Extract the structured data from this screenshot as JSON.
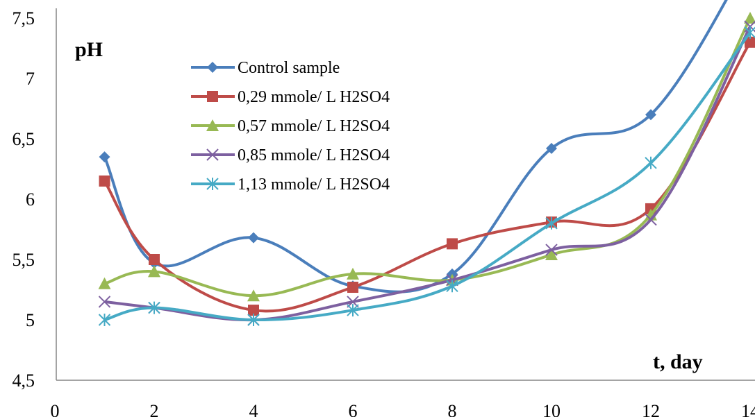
{
  "chart_data": {
    "type": "line",
    "ylabel": "pH",
    "xlabel": "t, day",
    "xlim": [
      0,
      14
    ],
    "ylim": [
      4.5,
      7.5
    ],
    "x_ticks": [
      "0",
      "2",
      "4",
      "6",
      "8",
      "10",
      "12",
      "14"
    ],
    "y_ticks": [
      "4,5",
      "5",
      "5,5",
      "6",
      "6,5",
      "7",
      "7,5"
    ],
    "grid": false,
    "legend_position": "top-left",
    "series": [
      {
        "name": "Control sample",
        "color": "#4a7ebb",
        "marker": "diamond",
        "x": [
          1,
          2,
          4,
          6,
          8,
          10,
          12,
          14
        ],
        "y": [
          6.35,
          5.47,
          5.68,
          5.28,
          5.38,
          6.42,
          6.7,
          8.0
        ]
      },
      {
        "name": "0,29 mmole/ L H2SO4",
        "color": "#be4b48",
        "marker": "square",
        "x": [
          1,
          2,
          4,
          6,
          8,
          10,
          12,
          14
        ],
        "y": [
          6.15,
          5.5,
          5.08,
          5.27,
          5.63,
          5.81,
          5.92,
          7.3
        ]
      },
      {
        "name": "0,57 mmole/ L H2SO4",
        "color": "#98b954",
        "marker": "triangle",
        "x": [
          1,
          2,
          4,
          6,
          8,
          10,
          12,
          14
        ],
        "y": [
          5.3,
          5.4,
          5.2,
          5.38,
          5.33,
          5.54,
          5.87,
          7.5
        ]
      },
      {
        "name": "0,85 mmole/ L H2SO4",
        "color": "#7d60a0",
        "marker": "x",
        "x": [
          1,
          2,
          4,
          6,
          8,
          10,
          12,
          14
        ],
        "y": [
          5.15,
          5.1,
          5.0,
          5.15,
          5.33,
          5.58,
          5.83,
          7.43
        ]
      },
      {
        "name": "1,13 mmole/ L H2SO4",
        "color": "#46aac5",
        "marker": "star",
        "x": [
          1,
          2,
          4,
          6,
          8,
          10,
          12,
          14
        ],
        "y": [
          5.0,
          5.1,
          5.0,
          5.08,
          5.28,
          5.8,
          6.3,
          7.38
        ]
      }
    ]
  }
}
